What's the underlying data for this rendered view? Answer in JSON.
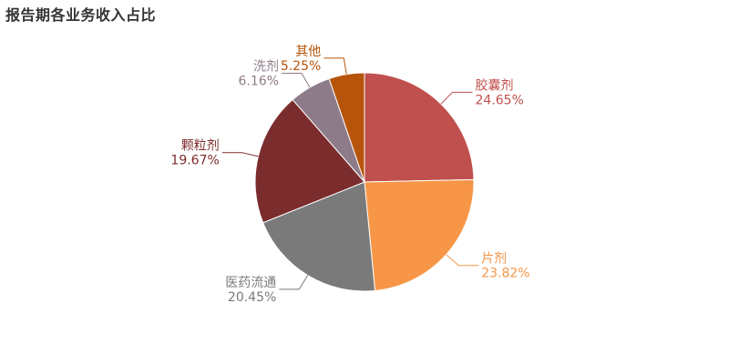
{
  "title": "报告期各业务收入占比",
  "chart_data": {
    "type": "pie",
    "title": "报告期各业务收入占比",
    "start_angle_deg": -90,
    "direction": "clockwise",
    "slices": [
      {
        "name": "胶囊剂",
        "value": 24.65,
        "label": "24.65%",
        "color": "#C0504D"
      },
      {
        "name": "片剂",
        "value": 23.82,
        "label": "23.82%",
        "color": "#F79646"
      },
      {
        "name": "医药流通",
        "value": 20.45,
        "label": "20.45%",
        "color": "#7A7A7A"
      },
      {
        "name": "颗粒剂",
        "value": 19.67,
        "label": "19.67%",
        "color": "#7B2C2C"
      },
      {
        "name": "洗剂",
        "value": 6.16,
        "label": "6.16%",
        "color": "#8E7B8A"
      },
      {
        "name": "其他",
        "value": 5.25,
        "label": "5.25%",
        "color": "#B5540A"
      }
    ]
  }
}
